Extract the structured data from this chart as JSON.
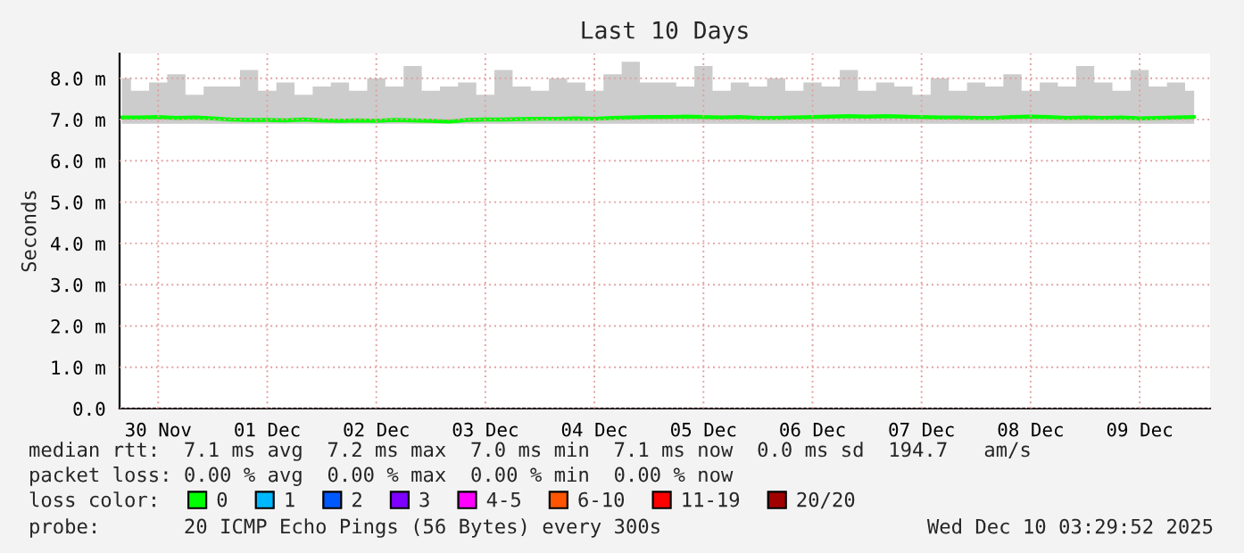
{
  "chart_data": {
    "type": "line",
    "title": "Last 10 Days",
    "ylabel": "Seconds",
    "x": [
      "2025-11-30T04:00",
      "2025-11-30T08:00",
      "2025-11-30T12:00",
      "2025-11-30T16:00",
      "2025-11-30T20:00",
      "2025-12-01T00:00",
      "2025-12-01T04:00",
      "2025-12-01T08:00",
      "2025-12-01T12:00",
      "2025-12-01T16:00",
      "2025-12-01T20:00",
      "2025-12-02T00:00",
      "2025-12-02T04:00",
      "2025-12-02T08:00",
      "2025-12-02T12:00",
      "2025-12-02T16:00",
      "2025-12-02T20:00",
      "2025-12-03T00:00",
      "2025-12-03T04:00",
      "2025-12-03T08:00",
      "2025-12-03T12:00",
      "2025-12-03T16:00",
      "2025-12-03T20:00",
      "2025-12-04T00:00",
      "2025-12-04T04:00",
      "2025-12-04T08:00",
      "2025-12-04T12:00",
      "2025-12-04T16:00",
      "2025-12-04T20:00",
      "2025-12-05T00:00",
      "2025-12-05T04:00",
      "2025-12-05T08:00",
      "2025-12-05T12:00",
      "2025-12-05T16:00",
      "2025-12-05T20:00",
      "2025-12-06T00:00",
      "2025-12-06T04:00",
      "2025-12-06T08:00",
      "2025-12-06T12:00",
      "2025-12-06T16:00",
      "2025-12-06T20:00",
      "2025-12-07T00:00",
      "2025-12-07T04:00",
      "2025-12-07T08:00",
      "2025-12-07T12:00",
      "2025-12-07T16:00",
      "2025-12-07T20:00",
      "2025-12-08T00:00",
      "2025-12-08T04:00",
      "2025-12-08T08:00",
      "2025-12-08T12:00",
      "2025-12-08T16:00",
      "2025-12-08T20:00",
      "2025-12-09T00:00",
      "2025-12-09T04:00",
      "2025-12-09T08:00",
      "2025-12-09T12:00",
      "2025-12-09T16:00",
      "2025-12-09T20:00",
      "2025-12-10T00:00"
    ],
    "series": [
      {
        "name": "0",
        "color": "#00ff00",
        "values": [
          7.05,
          7.05,
          7.06,
          7.04,
          7.05,
          7.03,
          7.0,
          6.99,
          6.99,
          6.98,
          7.0,
          6.98,
          6.97,
          6.98,
          6.97,
          6.99,
          6.98,
          6.97,
          6.95,
          6.99,
          7.0,
          7.0,
          7.01,
          7.02,
          7.02,
          7.03,
          7.02,
          7.04,
          7.05,
          7.06,
          7.06,
          7.07,
          7.06,
          7.05,
          7.06,
          7.04,
          7.04,
          7.05,
          7.06,
          7.07,
          7.08,
          7.07,
          7.08,
          7.07,
          7.06,
          7.05,
          7.05,
          7.04,
          7.04,
          7.06,
          7.07,
          7.06,
          7.04,
          7.05,
          7.04,
          7.05,
          7.03,
          7.04,
          7.05,
          7.06
        ],
        "lower": [
          6.9,
          6.9,
          6.9,
          6.9,
          6.9,
          6.9,
          6.9,
          6.9,
          6.9,
          6.9,
          6.9,
          6.9,
          6.9,
          6.9,
          6.9,
          6.9,
          6.9,
          6.9,
          6.9,
          6.9,
          6.9,
          6.9,
          6.9,
          6.9,
          6.9,
          6.9,
          6.9,
          6.9,
          6.9,
          6.9,
          6.9,
          6.9,
          6.9,
          6.9,
          6.9,
          6.9,
          6.9,
          6.9,
          6.9,
          6.9,
          6.9,
          6.9,
          6.9,
          6.9,
          6.9,
          6.9,
          6.9,
          6.9,
          6.9,
          6.9,
          6.9,
          6.9,
          6.9,
          6.9,
          6.9,
          6.9,
          6.9,
          6.9,
          6.9,
          6.9
        ],
        "upper": [
          8.0,
          7.7,
          7.9,
          8.1,
          7.6,
          7.8,
          7.8,
          8.2,
          7.7,
          7.9,
          7.6,
          7.8,
          7.9,
          7.7,
          8.0,
          7.8,
          8.3,
          7.7,
          7.8,
          7.9,
          7.6,
          8.2,
          7.8,
          7.7,
          8.0,
          7.9,
          7.7,
          8.1,
          8.4,
          7.9,
          7.9,
          7.8,
          8.3,
          7.7,
          7.9,
          7.8,
          8.0,
          7.7,
          7.9,
          7.8,
          8.2,
          7.7,
          7.9,
          7.8,
          7.6,
          8.0,
          7.7,
          7.9,
          7.8,
          8.1,
          7.7,
          7.9,
          7.8,
          8.3,
          7.9,
          7.7,
          8.2,
          7.8,
          7.9,
          7.7
        ]
      },
      {
        "name": "1",
        "color": "#00b8ff",
        "values": [
          null,
          null,
          null,
          null,
          null,
          null,
          null,
          null,
          null,
          null,
          null,
          null,
          null,
          null,
          null,
          null,
          null,
          null,
          null,
          null,
          null,
          null,
          null,
          null,
          null,
          null,
          null,
          null,
          null,
          null,
          null,
          null,
          null,
          null,
          null,
          null,
          null,
          null,
          null,
          null,
          null,
          null,
          null,
          null,
          null,
          null,
          null,
          null,
          null,
          null,
          null,
          null,
          null,
          null,
          null,
          null,
          null,
          null,
          null,
          null
        ]
      },
      {
        "name": "2",
        "color": "#0059ff",
        "values": [
          null,
          null,
          null,
          null,
          null,
          null,
          null,
          null,
          null,
          null,
          null,
          null,
          null,
          null,
          null,
          null,
          null,
          null,
          null,
          null,
          null,
          null,
          null,
          null,
          null,
          null,
          null,
          null,
          null,
          null,
          null,
          null,
          null,
          null,
          null,
          null,
          null,
          null,
          null,
          null,
          null,
          null,
          null,
          null,
          null,
          null,
          null,
          null,
          null,
          null,
          null,
          null,
          null,
          null,
          null,
          null,
          null,
          null,
          null,
          null
        ]
      },
      {
        "name": "3",
        "color": "#7e00ff",
        "values": [
          null,
          null,
          null,
          null,
          null,
          null,
          null,
          null,
          null,
          null,
          null,
          null,
          null,
          null,
          null,
          null,
          null,
          null,
          null,
          null,
          null,
          null,
          null,
          null,
          null,
          null,
          null,
          null,
          null,
          null,
          null,
          null,
          null,
          null,
          null,
          null,
          null,
          null,
          null,
          null,
          null,
          null,
          null,
          null,
          null,
          null,
          null,
          null,
          null,
          null,
          null,
          null,
          null,
          null,
          null,
          null,
          null,
          null,
          null,
          null
        ]
      },
      {
        "name": "4-5",
        "color": "#ff00ff",
        "values": [
          null,
          null,
          null,
          null,
          null,
          null,
          null,
          null,
          null,
          null,
          null,
          null,
          null,
          null,
          null,
          null,
          null,
          null,
          null,
          null,
          null,
          null,
          null,
          null,
          null,
          null,
          null,
          null,
          null,
          null,
          null,
          null,
          null,
          null,
          null,
          null,
          null,
          null,
          null,
          null,
          null,
          null,
          null,
          null,
          null,
          null,
          null,
          null,
          null,
          null,
          null,
          null,
          null,
          null,
          null,
          null,
          null,
          null,
          null,
          null
        ]
      },
      {
        "name": "6-10",
        "color": "#ff5500",
        "values": [
          null,
          null,
          null,
          null,
          null,
          null,
          null,
          null,
          null,
          null,
          null,
          null,
          null,
          null,
          null,
          null,
          null,
          null,
          null,
          null,
          null,
          null,
          null,
          null,
          null,
          null,
          null,
          null,
          null,
          null,
          null,
          null,
          null,
          null,
          null,
          null,
          null,
          null,
          null,
          null,
          null,
          null,
          null,
          null,
          null,
          null,
          null,
          null,
          null,
          null,
          null,
          null,
          null,
          null,
          null,
          null,
          null,
          null,
          null,
          null
        ]
      },
      {
        "name": "11-19",
        "color": "#ff0000",
        "values": [
          null,
          null,
          null,
          null,
          null,
          null,
          null,
          null,
          null,
          null,
          null,
          null,
          null,
          null,
          null,
          null,
          null,
          null,
          null,
          null,
          null,
          null,
          null,
          null,
          null,
          null,
          null,
          null,
          null,
          null,
          null,
          null,
          null,
          null,
          null,
          null,
          null,
          null,
          null,
          null,
          null,
          null,
          null,
          null,
          null,
          null,
          null,
          null,
          null,
          null,
          null,
          null,
          null,
          null,
          null,
          null,
          null,
          null,
          null,
          null
        ]
      },
      {
        "name": "20/20",
        "color": "#a10000",
        "values": [
          null,
          null,
          null,
          null,
          null,
          null,
          null,
          null,
          null,
          null,
          null,
          null,
          null,
          null,
          null,
          null,
          null,
          null,
          null,
          null,
          null,
          null,
          null,
          null,
          null,
          null,
          null,
          null,
          null,
          null,
          null,
          null,
          null,
          null,
          null,
          null,
          null,
          null,
          null,
          null,
          null,
          null,
          null,
          null,
          null,
          null,
          null,
          null,
          null,
          null,
          null,
          null,
          null,
          null,
          null,
          null,
          null,
          null,
          null,
          null
        ]
      }
    ],
    "legend": "bottom",
    "legend_title": "loss color:",
    "xlim": [
      "2025-11-30T03:30",
      "2025-12-10T03:30"
    ],
    "xticks": [
      {
        "value": "2025-11-30T12:00",
        "label": "30 Nov"
      },
      {
        "value": "2025-12-01T12:00",
        "label": "01 Dec"
      },
      {
        "value": "2025-12-02T12:00",
        "label": "02 Dec"
      },
      {
        "value": "2025-12-03T12:00",
        "label": "03 Dec"
      },
      {
        "value": "2025-12-04T12:00",
        "label": "04 Dec"
      },
      {
        "value": "2025-12-05T12:00",
        "label": "05 Dec"
      },
      {
        "value": "2025-12-06T12:00",
        "label": "06 Dec"
      },
      {
        "value": "2025-12-07T12:00",
        "label": "07 Dec"
      },
      {
        "value": "2025-12-08T12:00",
        "label": "08 Dec"
      },
      {
        "value": "2025-12-09T12:00",
        "label": "09 Dec"
      }
    ],
    "ylim": [
      0,
      8.6
    ],
    "yticks": [
      {
        "value": 0,
        "label": "0.0"
      },
      {
        "value": 1,
        "label": "1.0 m"
      },
      {
        "value": 2,
        "label": "2.0 m"
      },
      {
        "value": 3,
        "label": "3.0 m"
      },
      {
        "value": 4,
        "label": "4.0 m"
      },
      {
        "value": 5,
        "label": "5.0 m"
      },
      {
        "value": 6,
        "label": "6.0 m"
      },
      {
        "value": 7,
        "label": "7.0 m"
      },
      {
        "value": 8,
        "label": "8.0 m"
      }
    ],
    "grid": true,
    "annotations": [
      "median rtt:  7.1 ms avg  7.2 ms max  7.0 ms min  7.1 ms now  0.0 ms sd  194.7   am/s",
      "packet loss: 0.00 % avg  0.00 % max  0.00 % min  0.00 % now",
      "probe:       20 ICMP Echo Pings (56 Bytes) every 300s",
      "Wed Dec 10 03:29:52 2025"
    ]
  }
}
